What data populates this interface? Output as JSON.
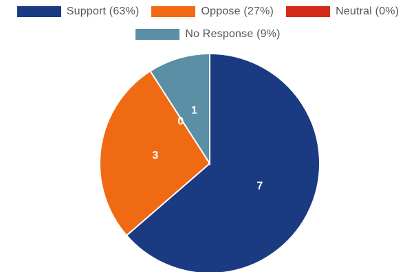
{
  "chart_data": {
    "type": "pie",
    "title": "",
    "categories": [
      "Support",
      "Oppose",
      "Neutral",
      "No Response"
    ],
    "values": [
      7,
      3,
      0,
      1
    ],
    "legend_labels": [
      "Support (63%)",
      "Oppose (27%)",
      "Neutral (0%)",
      "No Response (9%)"
    ],
    "data_labels": [
      "7",
      "3",
      "0",
      "1"
    ],
    "colors": [
      "#1a3a82",
      "#f06a14",
      "#d42a17",
      "#5a8fa6"
    ],
    "legend_position": "top"
  }
}
